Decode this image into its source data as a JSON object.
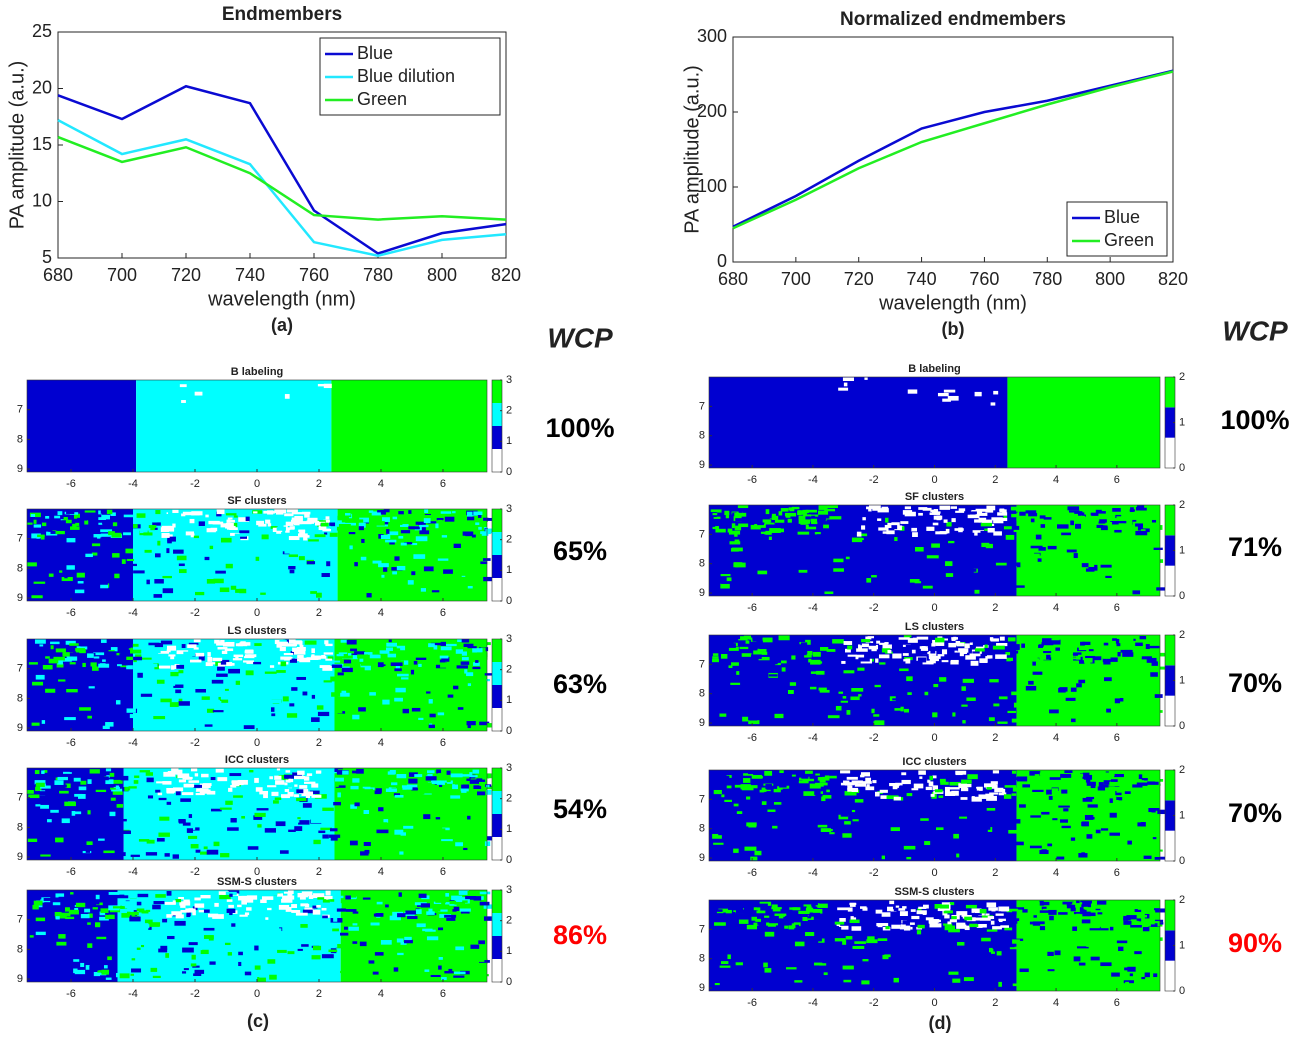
{
  "chart_data": [
    {
      "type": "line",
      "title": "Endmembers",
      "xlabel": "wavelength (nm)",
      "ylabel": "PA amplitude (a.u.)",
      "caption": "(a)",
      "x": [
        680,
        700,
        720,
        740,
        760,
        780,
        800,
        820
      ],
      "xlim": [
        680,
        820
      ],
      "xticks": [
        680,
        700,
        720,
        740,
        760,
        780,
        800,
        820
      ],
      "ylim": [
        5,
        25
      ],
      "yticks": [
        5,
        10,
        15,
        20,
        25
      ],
      "legend": "upper right",
      "series": [
        {
          "name": "Blue",
          "color": "#0a0ad2",
          "values": [
            19.4,
            17.3,
            20.2,
            18.7,
            9.2,
            5.4,
            7.2,
            8.0
          ]
        },
        {
          "name": "Blue dilution",
          "color": "#22e8ff",
          "values": [
            17.2,
            14.2,
            15.5,
            13.3,
            6.4,
            5.2,
            6.6,
            7.1
          ]
        },
        {
          "name": "Green",
          "color": "#22ee22",
          "values": [
            15.7,
            13.5,
            14.8,
            12.5,
            8.8,
            8.4,
            8.7,
            8.4
          ]
        }
      ]
    },
    {
      "type": "line",
      "title": "Normalized endmembers",
      "xlabel": "wavelength (nm)",
      "ylabel": "PA amplitude (a.u.)",
      "caption": "(b)",
      "x": [
        680,
        700,
        720,
        740,
        760,
        780,
        800,
        820
      ],
      "xlim": [
        680,
        820
      ],
      "xticks": [
        680,
        700,
        720,
        740,
        760,
        780,
        800,
        820
      ],
      "ylim": [
        0,
        300
      ],
      "yticks": [
        0,
        100,
        200,
        300
      ],
      "legend": "lower right",
      "series": [
        {
          "name": "Blue",
          "color": "#0a0ad2",
          "values": [
            47,
            88,
            135,
            178,
            200,
            215,
            235,
            255
          ]
        },
        {
          "name": "Green",
          "color": "#22ee22",
          "values": [
            45,
            83,
            125,
            160,
            185,
            210,
            233,
            254
          ]
        }
      ]
    }
  ],
  "cluster_panels": [
    {
      "caption": "(c)",
      "header": "WCP",
      "colors": [
        "#ffffff",
        "#0000d0",
        "#00ffff",
        "#00ff00"
      ],
      "xlim": [
        -7.42,
        7.42
      ],
      "xticks": [
        -6,
        -4,
        -2,
        0,
        2,
        4,
        6
      ],
      "ylim": [
        6,
        9.1
      ],
      "yticks": [
        7,
        8,
        9
      ],
      "cbar_ticks": [
        0,
        1,
        2,
        3
      ],
      "maps": [
        {
          "title": "B labeling",
          "wcp": "100%",
          "wcp_color": "#000000",
          "regions": [
            [
              -7.42,
              -3.9,
              1
            ],
            [
              -3.9,
              2.4,
              2
            ],
            [
              2.4,
              7.42,
              3
            ]
          ]
        },
        {
          "title": "SF clusters",
          "wcp": "65%",
          "wcp_color": "#000000",
          "regions": [
            [
              -7.42,
              -4,
              1
            ],
            [
              -4,
              2.6,
              2
            ],
            [
              2.6,
              7.42,
              3
            ]
          ]
        },
        {
          "title": "LS clusters",
          "wcp": "63%",
          "wcp_color": "#000000",
          "regions": [
            [
              -7.42,
              -4,
              1
            ],
            [
              -4,
              2.5,
              2
            ],
            [
              2.5,
              7.42,
              3
            ]
          ]
        },
        {
          "title": "ICC clusters",
          "wcp": "54%",
          "wcp_color": "#000000",
          "regions": [
            [
              -7.42,
              -4.3,
              1
            ],
            [
              -4.3,
              2.5,
              2
            ],
            [
              2.5,
              7.42,
              3
            ]
          ]
        },
        {
          "title": "SSM-S clusters",
          "wcp": "86%",
          "wcp_color": "#ff0000",
          "regions": [
            [
              -7.42,
              -4.5,
              1
            ],
            [
              -4.5,
              2.7,
              2
            ],
            [
              2.7,
              7.42,
              3
            ]
          ]
        }
      ]
    },
    {
      "caption": "(d)",
      "header": "WCP",
      "colors": [
        "#ffffff",
        "#0000d0",
        "#00ff00"
      ],
      "xlim": [
        -7.42,
        7.42
      ],
      "xticks": [
        -6,
        -4,
        -2,
        0,
        2,
        4,
        6
      ],
      "ylim": [
        6,
        9.1
      ],
      "yticks": [
        7,
        8,
        9
      ],
      "cbar_ticks": [
        0,
        1,
        2
      ],
      "maps": [
        {
          "title": "B labeling",
          "wcp": "100%",
          "wcp_color": "#000000",
          "regions": [
            [
              -7.42,
              2.4,
              1
            ],
            [
              2.4,
              7.42,
              2
            ]
          ]
        },
        {
          "title": "SF clusters",
          "wcp": "71%",
          "wcp_color": "#000000",
          "regions": [
            [
              -7.42,
              2.7,
              1
            ],
            [
              2.7,
              7.42,
              2
            ]
          ]
        },
        {
          "title": "LS clusters",
          "wcp": "70%",
          "wcp_color": "#000000",
          "regions": [
            [
              -7.42,
              2.7,
              1
            ],
            [
              2.7,
              7.42,
              2
            ]
          ]
        },
        {
          "title": "ICC clusters",
          "wcp": "70%",
          "wcp_color": "#000000",
          "regions": [
            [
              -7.42,
              2.7,
              1
            ],
            [
              2.7,
              7.42,
              2
            ]
          ]
        },
        {
          "title": "SSM-S clusters",
          "wcp": "90%",
          "wcp_color": "#ff0000",
          "regions": [
            [
              -7.42,
              2.7,
              1
            ],
            [
              2.7,
              7.42,
              2
            ]
          ]
        }
      ]
    }
  ]
}
